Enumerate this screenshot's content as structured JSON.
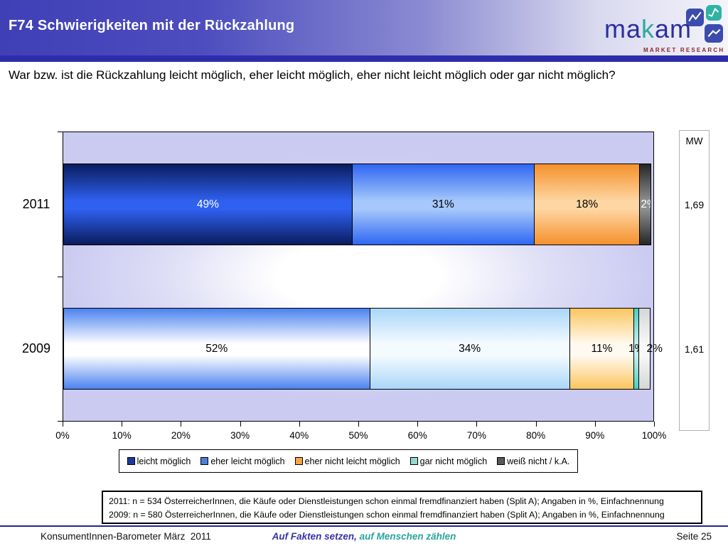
{
  "header": {
    "title": "F74 Schwierigkeiten mit der Rückzahlung"
  },
  "logo": {
    "brand_pre": "ma",
    "brand_k": "k",
    "brand_post": "am",
    "tagline": "MARKET RESEARCH",
    "icons": [
      "chart-line-icon",
      "chart-line-icon",
      "chart-line-icon"
    ]
  },
  "question": "War bzw. ist die Rückzahlung leicht möglich, eher leicht möglich, eher nicht leicht möglich oder gar nicht möglich?",
  "chart_data": {
    "type": "bar",
    "orientation": "horizontal_stacked",
    "title": "",
    "categories": [
      "2011",
      "2009"
    ],
    "series": [
      {
        "name": "leicht möglich",
        "values": [
          49,
          52
        ]
      },
      {
        "name": "eher leicht möglich",
        "values": [
          31,
          34
        ]
      },
      {
        "name": "eher nicht leicht möglich",
        "values": [
          18,
          11
        ]
      },
      {
        "name": "gar nicht möglich",
        "values": [
          0,
          1
        ]
      },
      {
        "name": "weiß nicht / k.A.",
        "values": [
          2,
          2
        ]
      }
    ],
    "value_suffix": "%",
    "x_ticks": [
      "0%",
      "10%",
      "20%",
      "30%",
      "40%",
      "50%",
      "60%",
      "70%",
      "80%",
      "90%",
      "100%"
    ],
    "xlim": [
      0,
      100
    ],
    "grid": false,
    "legend_position": "bottom",
    "mean_column": {
      "label": "MW",
      "values": [
        "1,69",
        "1,61"
      ]
    }
  },
  "footnotes": [
    "2011: n = 534 ÖsterreicherInnen, die Käufe oder Dienstleistungen schon einmal fremdfinanziert haben (Split A); Angaben in %, Einfachnennung",
    "2009: n = 580 ÖsterreicherInnen, die Käufe oder Dienstleistungen schon einmal fremdfinanziert haben (Split A); Angaben in %, Einfachnennung"
  ],
  "footer": {
    "left": "KonsumentInnen-Barometer März  2011",
    "center_part1": "Auf Fakten setzen,",
    "center_part2": " auf Menschen zählen",
    "right": "Seite 25"
  },
  "colors": {
    "header_accent": "#4040b6",
    "header_strip": "#2d2dac",
    "plot_background": "#cbcbf2",
    "series_swatches": [
      "#1b3a9c",
      "#4d7fd9",
      "#f9a543",
      "#93d9d2",
      "#595959"
    ],
    "footer_slogan_1": "#3434a8",
    "footer_slogan_2": "#2aa49d"
  }
}
